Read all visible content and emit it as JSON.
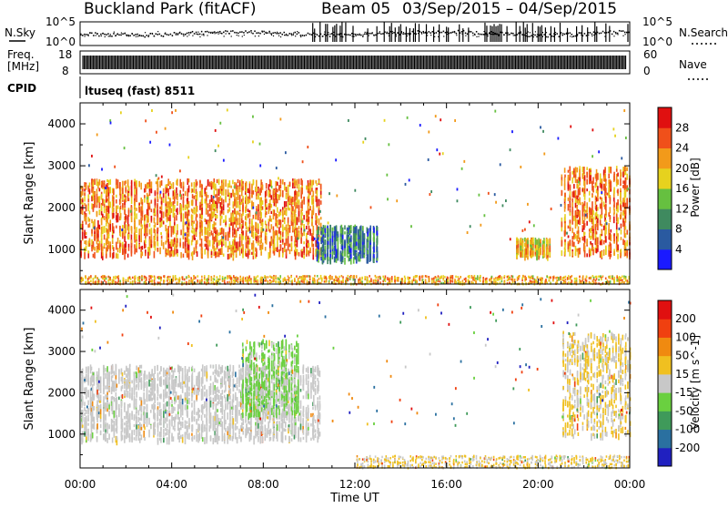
{
  "header": {
    "station": "Buckland Park (fitACF)",
    "beam": "Beam 05",
    "date_range": "03/Sep/2015 – 04/Sep/2015"
  },
  "panels": {
    "nsky_label": "N.Sky",
    "nsky_ticks": [
      "10^5",
      "10^0"
    ],
    "nsearch_label": "N.Search",
    "nsearch_ticks": [
      "10^5",
      "10^0"
    ],
    "freq_label_line1": "Freq.",
    "freq_label_line2": "[MHz]",
    "freq_ticks": [
      "18",
      "8"
    ],
    "nave_label": "Nave",
    "nave_ticks": [
      "60",
      "0"
    ],
    "cpid_label": "CPID",
    "cpid_value": "ltuseq (fast) 8511"
  },
  "chart_data": [
    {
      "type": "heatmap",
      "title": "",
      "xlabel": "Time UT",
      "ylabel": "Slant Range [km]",
      "x_ticks": [
        "00:00",
        "04:00",
        "08:00",
        "12:00",
        "16:00",
        "20:00",
        "00:00"
      ],
      "x_range_hours": [
        0,
        24
      ],
      "ylim": [
        180,
        4500
      ],
      "y_ticks": [
        1000,
        2000,
        3000,
        4000
      ],
      "colorbar": {
        "label": "Power [dB]",
        "ticks": [
          "4",
          "8",
          "12",
          "16",
          "20",
          "24",
          "28"
        ],
        "range": [
          0,
          30
        ],
        "colors": [
          "#1a1aff",
          "#2a5aa0",
          "#3f8a5f",
          "#66c040",
          "#e6d21e",
          "#f29a1a",
          "#f0501a",
          "#e01010"
        ]
      },
      "scatter_regions": [
        {
          "t_start": 0.0,
          "t_end": 10.5,
          "range_low": 900,
          "range_high": 2700,
          "dominant_db": 22
        },
        {
          "t_start": 10.3,
          "t_end": 13.0,
          "range_low": 800,
          "range_high": 1600,
          "dominant_db": 8
        },
        {
          "t_start": 19.0,
          "t_end": 20.5,
          "range_low": 900,
          "range_high": 1300,
          "dominant_db": 18
        },
        {
          "t_start": 21.0,
          "t_end": 24.0,
          "range_low": 900,
          "range_high": 3000,
          "dominant_db": 22
        },
        {
          "t_start": 0.0,
          "t_end": 24.0,
          "range_low": 200,
          "range_high": 400,
          "dominant_db": 20
        }
      ]
    },
    {
      "type": "heatmap",
      "title": "",
      "xlabel": "Time UT",
      "ylabel": "Slant Range [km]",
      "x_ticks": [
        "00:00",
        "04:00",
        "08:00",
        "12:00",
        "16:00",
        "20:00",
        "00:00"
      ],
      "x_range_hours": [
        0,
        24
      ],
      "ylim": [
        180,
        4500
      ],
      "y_ticks": [
        1000,
        2000,
        3000,
        4000
      ],
      "colorbar": {
        "label": "Velocity [m s^-1]",
        "ticks": [
          "200",
          "100",
          "50",
          "15",
          "-15",
          "-50",
          "-100",
          "-200"
        ],
        "range": [
          -250,
          250
        ],
        "colors": [
          "#2020c0",
          "#2a70a0",
          "#3f9a5a",
          "#6ad040",
          "#c8c8c8",
          "#f0c020",
          "#f08a10",
          "#f04010",
          "#e01010"
        ]
      },
      "scatter_regions": [
        {
          "t_start": 0.0,
          "t_end": 10.5,
          "range_low": 900,
          "range_high": 2700,
          "dominant_ms": 0
        },
        {
          "t_start": 7.0,
          "t_end": 9.5,
          "range_low": 1500,
          "range_high": 3300,
          "dominant_ms": -40
        },
        {
          "t_start": 21.0,
          "t_end": 24.0,
          "range_low": 1000,
          "range_high": 3500,
          "dominant_ms": 30
        },
        {
          "t_start": 12.0,
          "t_end": 24.0,
          "range_low": 200,
          "range_high": 500,
          "dominant_ms": 30
        }
      ]
    }
  ]
}
